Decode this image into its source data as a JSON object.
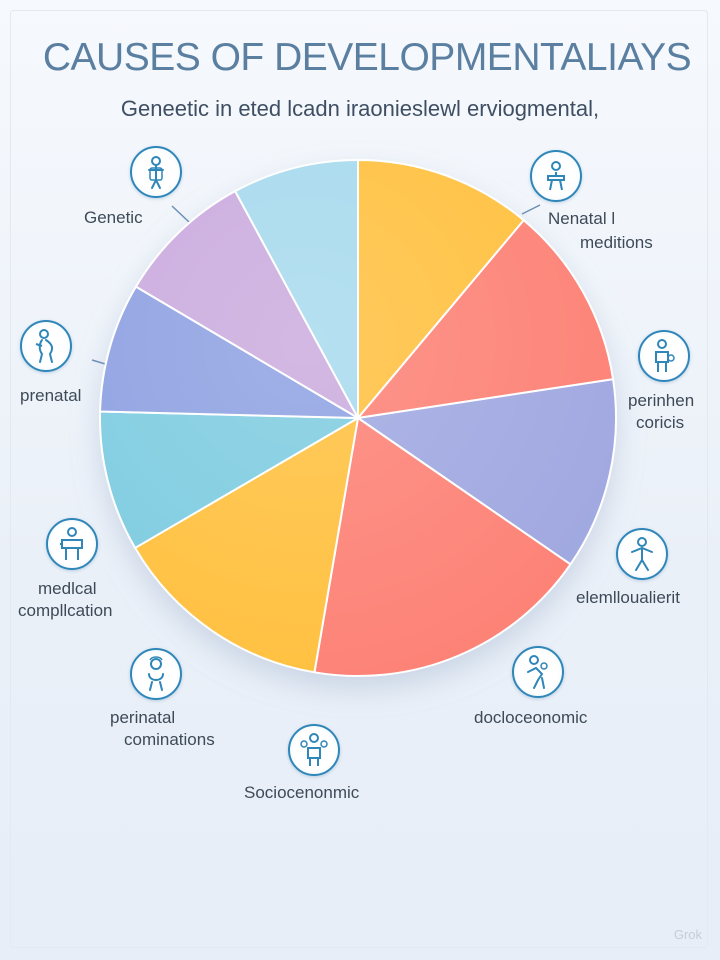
{
  "title": "CAUSES OF DEVELOPMENTALIAYS",
  "subtitle": "Geneetic in eted lcadn iraonieslewl erviogmental,",
  "labels": {
    "genetic": "Genetic",
    "prenatal": "prenatal",
    "medical_line1": "medlcal",
    "medical_line2": "compllcation",
    "perinatal_line1": "perinatal",
    "perinatal_line2": "cominations",
    "socioeconomic_bottom": "Sociocenonmic",
    "renatal_line1": "Nenatal l",
    "renatal_line2": "meditions",
    "perinhen_line1": "perinhen",
    "perinhen_line2": "coricis",
    "elemlou": "elemlloualierit",
    "docioce": "docloceonomic"
  },
  "watermark": "Grok",
  "colors": {
    "sky": "#a5d9ed",
    "amber": "#ffbf3a",
    "coral": "#fd7f73",
    "lavender": "#9ea6e0",
    "lilac": "#c9a9dd",
    "periwinkle": "#8c9fe1",
    "teal": "#7ccbe0",
    "icon_stroke": "#2f86b9"
  },
  "icons": [
    "person-icon",
    "doctor-icon",
    "pregnant-person-icon",
    "mother-child-icon",
    "patient-icon",
    "family-icon",
    "baby-icon",
    "helping-hands-icon",
    "community-icon"
  ],
  "chart_data": {
    "type": "pie",
    "title": "CAUSES OF DEVELOPMENTALIAYS",
    "subtitle": "Geneetic in eted lcadn iraonieslewl erviogmental,",
    "slices": [
      {
        "color": "#ffbf3a",
        "value": 11.1
      },
      {
        "color": "#fd7f73",
        "value": 11.5
      },
      {
        "color": "#9ea6e0",
        "value": 12.0
      },
      {
        "color": "#fd7f73",
        "value": 18.1
      },
      {
        "color": "#ffbf3a",
        "value": 13.9
      },
      {
        "color": "#7ccbe0",
        "value": 8.8
      },
      {
        "color": "#8c9fe1",
        "value": 8.1
      },
      {
        "color": "#c9a9dd",
        "value": 8.6
      },
      {
        "color": "#a5d9ed",
        "value": 7.9
      }
    ]
  }
}
